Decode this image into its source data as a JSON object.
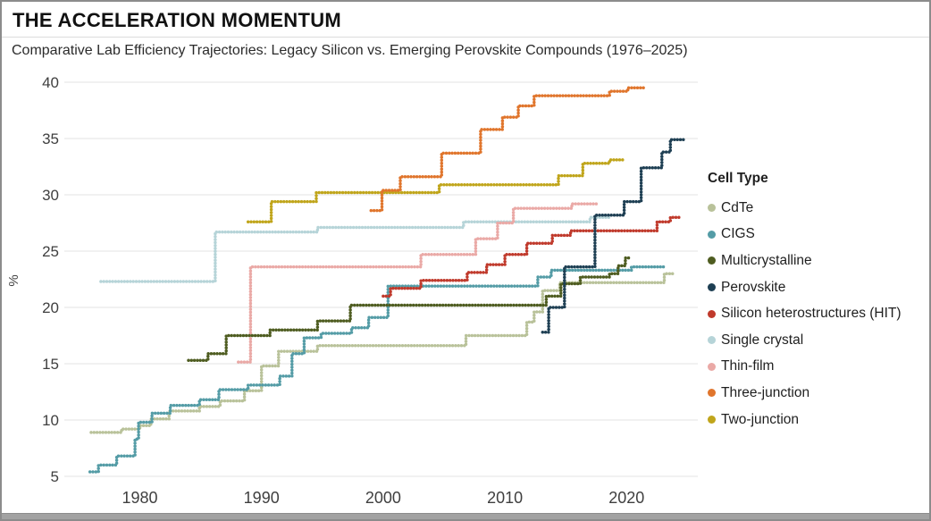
{
  "chart_data": {
    "type": "line",
    "subtype": "stepped-dotted",
    "title": "THE ACCELERATION MOMENTUM",
    "subtitle": "Comparative Lab Efficiency Trajectories: Legacy Silicon vs. Emerging Perovskite Compounds (1976–2025)",
    "legend_title": "Cell Type",
    "legend_position": "right",
    "grid": "horizontal",
    "xlabel": "",
    "ylabel": "%",
    "x_ticks": [
      1980,
      1990,
      2000,
      2010,
      2020
    ],
    "y_ticks": [
      5,
      10,
      15,
      20,
      25,
      30,
      35,
      40
    ],
    "xlim": [
      1975.5,
      2026
    ],
    "ylim": [
      5,
      40
    ],
    "x_unit": "year",
    "y_unit": "efficiency_percent",
    "series": [
      {
        "name": "CdTe",
        "color": "#b9c29a",
        "steps": [
          [
            1976.0,
            8.9
          ],
          [
            1978.5,
            9.2
          ],
          [
            1980.0,
            9.5
          ],
          [
            1980.9,
            10.1
          ],
          [
            1982.4,
            10.8
          ],
          [
            1984.9,
            11.2
          ],
          [
            1986.6,
            11.7
          ],
          [
            1988.6,
            12.6
          ],
          [
            1990.0,
            14.8
          ],
          [
            1991.4,
            16.1
          ],
          [
            1994.6,
            16.6
          ],
          [
            2006.8,
            17.5
          ],
          [
            2011.8,
            18.7
          ],
          [
            2012.4,
            19.6
          ],
          [
            2013.1,
            21.5
          ],
          [
            2014.5,
            22.2
          ],
          [
            2023.1,
            23.0
          ]
        ],
        "end_year": 2023.8
      },
      {
        "name": "CIGS",
        "color": "#549ca6",
        "steps": [
          [
            1975.9,
            5.4
          ],
          [
            1976.6,
            6.0
          ],
          [
            1978.1,
            6.8
          ],
          [
            1979.6,
            8.3
          ],
          [
            1979.9,
            9.8
          ],
          [
            1981.0,
            10.6
          ],
          [
            1982.5,
            11.3
          ],
          [
            1984.9,
            11.8
          ],
          [
            1986.5,
            12.7
          ],
          [
            1988.9,
            13.1
          ],
          [
            1991.5,
            13.9
          ],
          [
            1992.5,
            15.9
          ],
          [
            1993.5,
            17.3
          ],
          [
            1994.9,
            17.7
          ],
          [
            1997.4,
            18.2
          ],
          [
            1998.8,
            19.1
          ],
          [
            2000.4,
            21.9
          ],
          [
            2012.7,
            22.7
          ],
          [
            2013.8,
            23.3
          ],
          [
            2020.4,
            23.6
          ]
        ],
        "end_year": 2023.1
      },
      {
        "name": "Multicrystalline",
        "color": "#4e5c20",
        "steps": [
          [
            1984.0,
            15.3
          ],
          [
            1985.6,
            15.9
          ],
          [
            1987.1,
            17.5
          ],
          [
            1990.7,
            18.0
          ],
          [
            1994.6,
            18.8
          ],
          [
            1997.3,
            20.2
          ],
          [
            2013.4,
            21.0
          ],
          [
            2014.6,
            22.1
          ],
          [
            2016.2,
            22.7
          ],
          [
            2018.6,
            23.0
          ],
          [
            2019.3,
            23.7
          ],
          [
            2019.9,
            24.4
          ]
        ],
        "end_year": 2020.4
      },
      {
        "name": "Perovskite",
        "color": "#1e3f53",
        "steps": [
          [
            2013.1,
            17.8
          ],
          [
            2013.6,
            20.0
          ],
          [
            2014.9,
            23.6
          ],
          [
            2017.4,
            28.2
          ],
          [
            2019.8,
            29.4
          ],
          [
            2021.2,
            32.4
          ],
          [
            2022.9,
            33.8
          ],
          [
            2023.6,
            34.9
          ]
        ],
        "end_year": 2024.8
      },
      {
        "name": "Silicon heterostructures (HIT)",
        "color": "#c03a2c",
        "steps": [
          [
            2000.0,
            21.0
          ],
          [
            2000.6,
            21.7
          ],
          [
            2003.1,
            22.4
          ],
          [
            2006.9,
            23.1
          ],
          [
            2008.5,
            23.8
          ],
          [
            2010.0,
            24.7
          ],
          [
            2011.8,
            25.7
          ],
          [
            2013.9,
            26.4
          ],
          [
            2015.4,
            26.8
          ],
          [
            2022.5,
            27.6
          ],
          [
            2023.6,
            28.0
          ]
        ],
        "end_year": 2024.4
      },
      {
        "name": "Single crystal",
        "color": "#b6d4d8",
        "steps": [
          [
            1976.8,
            22.3
          ],
          [
            1986.2,
            26.7
          ],
          [
            1994.6,
            27.1
          ],
          [
            2006.6,
            27.6
          ],
          [
            2017.0,
            28.0
          ]
        ],
        "end_year": 2018.6
      },
      {
        "name": "Thin-film",
        "color": "#eaa9a6",
        "steps": [
          [
            1988.1,
            15.15
          ],
          [
            1989.1,
            23.6
          ],
          [
            2003.1,
            24.7
          ],
          [
            2007.6,
            26.1
          ],
          [
            2009.4,
            27.5
          ],
          [
            2010.7,
            28.8
          ],
          [
            2015.5,
            29.2
          ]
        ],
        "end_year": 2017.6
      },
      {
        "name": "Three-junction",
        "color": "#e0752c",
        "steps": [
          [
            1999.0,
            28.6
          ],
          [
            1999.9,
            30.4
          ],
          [
            2001.4,
            31.6
          ],
          [
            2004.8,
            33.7
          ],
          [
            2008.0,
            35.8
          ],
          [
            2009.8,
            36.9
          ],
          [
            2011.1,
            37.9
          ],
          [
            2012.4,
            38.8
          ],
          [
            2018.6,
            39.2
          ],
          [
            2020.1,
            39.5
          ]
        ],
        "end_year": 2021.4
      },
      {
        "name": "Two-junction",
        "color": "#c0a51b",
        "steps": [
          [
            1988.9,
            27.6
          ],
          [
            1990.8,
            29.4
          ],
          [
            1994.5,
            30.2
          ],
          [
            2004.6,
            30.9
          ],
          [
            2014.4,
            31.7
          ],
          [
            2016.4,
            32.8
          ],
          [
            2018.6,
            33.1
          ]
        ],
        "end_year": 2019.9
      }
    ]
  }
}
